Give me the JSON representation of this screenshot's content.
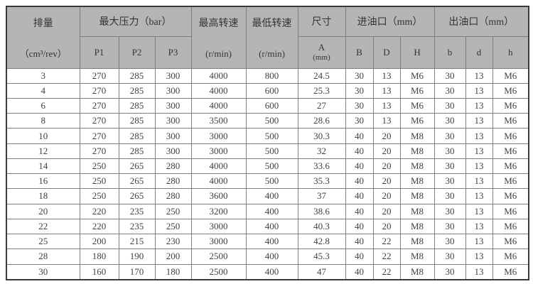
{
  "table": {
    "header": {
      "displacement": "排量",
      "displacement_unit": "（cm³/rev）",
      "max_pressure": "最大压力（bar）",
      "p1": "P1",
      "p2": "P2",
      "p3": "P3",
      "max_speed": "最高转速",
      "max_speed_unit": "(r/min)",
      "min_speed": "最低转速",
      "min_speed_unit": "(r/min)",
      "size": "尺寸",
      "size_a": "A",
      "size_a_unit": "(mm)",
      "inlet": "进油口（mm）",
      "inlet_b": "B",
      "inlet_d": "D",
      "inlet_h": "H",
      "outlet": "出油口（mm）",
      "outlet_b": "b",
      "outlet_d": "d",
      "outlet_h": "h"
    },
    "rows": [
      [
        "3",
        "270",
        "285",
        "300",
        "4000",
        "800",
        "24.5",
        "30",
        "13",
        "M6",
        "30",
        "13",
        "M6"
      ],
      [
        "4",
        "270",
        "285",
        "300",
        "4000",
        "600",
        "25.3",
        "30",
        "13",
        "M6",
        "30",
        "13",
        "M6"
      ],
      [
        "6",
        "270",
        "285",
        "300",
        "4000",
        "600",
        "27",
        "30",
        "13",
        "M6",
        "30",
        "13",
        "M6"
      ],
      [
        "8",
        "270",
        "285",
        "300",
        "3500",
        "500",
        "28.6",
        "30",
        "13",
        "M6",
        "30",
        "13",
        "M6"
      ],
      [
        "10",
        "270",
        "285",
        "300",
        "3000",
        "500",
        "30.3",
        "40",
        "20",
        "M8",
        "30",
        "13",
        "M6"
      ],
      [
        "12",
        "270",
        "285",
        "300",
        "3000",
        "500",
        "32",
        "40",
        "20",
        "M8",
        "30",
        "13",
        "M6"
      ],
      [
        "14",
        "250",
        "265",
        "280",
        "4000",
        "500",
        "33.6",
        "40",
        "20",
        "M8",
        "30",
        "13",
        "M6"
      ],
      [
        "16",
        "250",
        "265",
        "280",
        "4000",
        "500",
        "35.3",
        "40",
        "20",
        "M8",
        "30",
        "13",
        "M6"
      ],
      [
        "18",
        "250",
        "265",
        "280",
        "3600",
        "400",
        "37",
        "40",
        "20",
        "M8",
        "30",
        "13",
        "M6"
      ],
      [
        "20",
        "220",
        "235",
        "250",
        "3200",
        "400",
        "38.6",
        "40",
        "20",
        "M8",
        "30",
        "13",
        "M6"
      ],
      [
        "22",
        "220",
        "235",
        "250",
        "3000",
        "400",
        "40.3",
        "40",
        "20",
        "M8",
        "30",
        "13",
        "M6"
      ],
      [
        "25",
        "200",
        "215",
        "230",
        "3000",
        "400",
        "42.8",
        "40",
        "22",
        "M8",
        "30",
        "13",
        "M6"
      ],
      [
        "28",
        "180",
        "190",
        "200",
        "2500",
        "400",
        "45.3",
        "40",
        "22",
        "M8",
        "30",
        "13",
        "M6"
      ],
      [
        "30",
        "160",
        "170",
        "180",
        "2500",
        "400",
        "47",
        "40",
        "22",
        "M8",
        "30",
        "13",
        "M6"
      ]
    ]
  },
  "colors": {
    "header_bg": "#b5b5b5",
    "border_inner": "#7e7e7e",
    "border_outer": "#3a3a3a",
    "text": "#3f3f3f",
    "page_bg": "#ffffff"
  }
}
